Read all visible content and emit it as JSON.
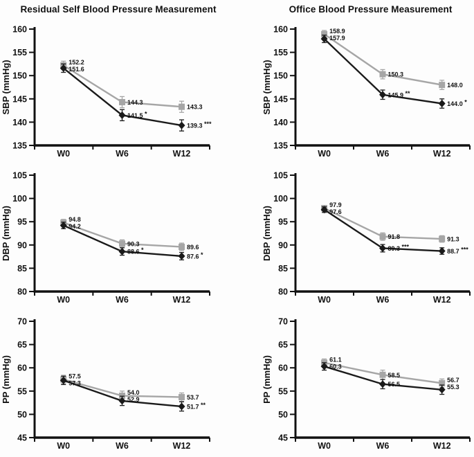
{
  "page": {
    "background": "#fdfdfd",
    "accent_gray": "#a6a6a6",
    "accent_black": "#1a1a1a"
  },
  "header": {
    "left_title": "Residual Self Blood Pressure Measurement",
    "right_title": "Office Blood Pressure Measurement"
  },
  "chart_data": [
    {
      "id": "residual-sbp",
      "type": "line",
      "group": "Residual Self Blood Pressure Measurement",
      "ylabel": "SBP (mmHg)",
      "ylim": [
        135,
        160
      ],
      "yticks": [
        135,
        140,
        145,
        150,
        155,
        160
      ],
      "categories": [
        "W0",
        "W6",
        "W12"
      ],
      "grid": false,
      "legend": "none",
      "series": [
        {
          "name": "gray_squares",
          "marker": "square",
          "color": "#a6a6a6",
          "values": [
            152.2,
            144.3,
            143.3
          ],
          "errors": [
            0.9,
            1.2,
            1.2
          ],
          "labels": [
            "152.2",
            "144.3",
            "143.3"
          ],
          "sig": [
            "",
            "",
            ""
          ]
        },
        {
          "name": "black_diamonds",
          "marker": "diamond",
          "color": "#1a1a1a",
          "values": [
            151.6,
            141.5,
            139.3
          ],
          "errors": [
            0.9,
            1.2,
            1.2
          ],
          "labels": [
            "151.6",
            "141.5",
            "139.3"
          ],
          "sig": [
            "",
            "*",
            "***"
          ]
        }
      ]
    },
    {
      "id": "office-sbp",
      "type": "line",
      "group": "Office Blood Pressure Measurement",
      "ylabel": "SBP (mmHg)",
      "ylim": [
        135,
        160
      ],
      "yticks": [
        135,
        140,
        145,
        150,
        155,
        160
      ],
      "categories": [
        "W0",
        "W6",
        "W12"
      ],
      "grid": false,
      "legend": "none",
      "series": [
        {
          "name": "gray_squares",
          "marker": "square",
          "color": "#a6a6a6",
          "values": [
            158.9,
            150.3,
            148.0
          ],
          "errors": [
            0.8,
            1.0,
            1.0
          ],
          "labels": [
            "158.9",
            "150.3",
            "148.0"
          ],
          "sig": [
            "",
            "",
            ""
          ]
        },
        {
          "name": "black_diamonds",
          "marker": "diamond",
          "color": "#1a1a1a",
          "values": [
            157.9,
            145.9,
            144.0
          ],
          "errors": [
            0.8,
            1.0,
            1.0
          ],
          "labels": [
            "157.9",
            "145.9",
            "144.0"
          ],
          "sig": [
            "",
            "**",
            "*"
          ]
        }
      ]
    },
    {
      "id": "residual-dbp",
      "type": "line",
      "group": "Residual Self Blood Pressure Measurement",
      "ylabel": "DBP (mmHg)",
      "ylim": [
        80,
        105
      ],
      "yticks": [
        80,
        85,
        90,
        95,
        100,
        105
      ],
      "categories": [
        "W0",
        "W6",
        "W12"
      ],
      "grid": false,
      "legend": "none",
      "series": [
        {
          "name": "gray_squares",
          "marker": "square",
          "color": "#a6a6a6",
          "values": [
            94.8,
            90.3,
            89.6
          ],
          "errors": [
            0.7,
            0.8,
            0.8
          ],
          "labels": [
            "94.8",
            "90.3",
            "89.6"
          ],
          "sig": [
            "",
            "",
            ""
          ]
        },
        {
          "name": "black_diamonds",
          "marker": "diamond",
          "color": "#1a1a1a",
          "values": [
            94.2,
            88.6,
            87.6
          ],
          "errors": [
            0.7,
            0.8,
            0.8
          ],
          "labels": [
            "94.2",
            "88.6",
            "87.6"
          ],
          "sig": [
            "",
            "*",
            "*"
          ]
        }
      ]
    },
    {
      "id": "office-dbp",
      "type": "line",
      "group": "Office Blood Pressure Measurement",
      "ylabel": "DBP (mmHg)",
      "ylim": [
        80,
        105
      ],
      "yticks": [
        80,
        85,
        90,
        95,
        100,
        105
      ],
      "categories": [
        "W0",
        "W6",
        "W12"
      ],
      "grid": false,
      "legend": "none",
      "series": [
        {
          "name": "gray_squares",
          "marker": "square",
          "color": "#a6a6a6",
          "values": [
            97.9,
            91.8,
            91.3
          ],
          "errors": [
            0.6,
            0.8,
            0.7
          ],
          "labels": [
            "97.9",
            "91.8",
            "91.3"
          ],
          "sig": [
            "",
            "",
            ""
          ]
        },
        {
          "name": "black_diamonds",
          "marker": "diamond",
          "color": "#1a1a1a",
          "values": [
            97.6,
            89.3,
            88.7
          ],
          "errors": [
            0.6,
            0.8,
            0.7
          ],
          "labels": [
            "97.6",
            "89.3",
            "88.7"
          ],
          "sig": [
            "",
            "***",
            "***"
          ]
        }
      ]
    },
    {
      "id": "residual-pp",
      "type": "line",
      "group": "Residual Self Blood Pressure Measurement",
      "ylabel": "PP (mmHg)",
      "ylim": [
        45,
        70
      ],
      "yticks": [
        45,
        50,
        55,
        60,
        65,
        70
      ],
      "categories": [
        "W0",
        "W6",
        "W12"
      ],
      "grid": false,
      "legend": "none",
      "series": [
        {
          "name": "gray_squares",
          "marker": "square",
          "color": "#a6a6a6",
          "values": [
            57.5,
            54.0,
            53.7
          ],
          "errors": [
            0.9,
            1.0,
            0.9
          ],
          "labels": [
            "57.5",
            "54.0",
            "53.7"
          ],
          "sig": [
            "",
            "",
            ""
          ]
        },
        {
          "name": "black_diamonds",
          "marker": "diamond",
          "color": "#1a1a1a",
          "values": [
            57.3,
            52.9,
            51.7
          ],
          "errors": [
            0.9,
            1.0,
            1.0
          ],
          "labels": [
            "57.3",
            "52.9",
            "51.7"
          ],
          "sig": [
            "",
            "",
            "**"
          ]
        }
      ]
    },
    {
      "id": "office-pp",
      "type": "line",
      "group": "Office Blood Pressure Measurement",
      "ylabel": "PP (mmHg)",
      "ylim": [
        45,
        70
      ],
      "yticks": [
        45,
        50,
        55,
        60,
        65,
        70
      ],
      "categories": [
        "W0",
        "W6",
        "W12"
      ],
      "grid": false,
      "legend": "none",
      "series": [
        {
          "name": "gray_squares",
          "marker": "square",
          "color": "#a6a6a6",
          "values": [
            61.1,
            58.5,
            56.7
          ],
          "errors": [
            0.8,
            1.0,
            0.9
          ],
          "labels": [
            "61.1",
            "58.5",
            "56.7"
          ],
          "sig": [
            "",
            "",
            ""
          ]
        },
        {
          "name": "black_diamonds",
          "marker": "diamond",
          "color": "#1a1a1a",
          "values": [
            60.3,
            56.5,
            55.3
          ],
          "errors": [
            0.8,
            1.0,
            1.0
          ],
          "labels": [
            "60.3",
            "56.5",
            "55.3"
          ],
          "sig": [
            "",
            "",
            ""
          ]
        }
      ]
    }
  ]
}
